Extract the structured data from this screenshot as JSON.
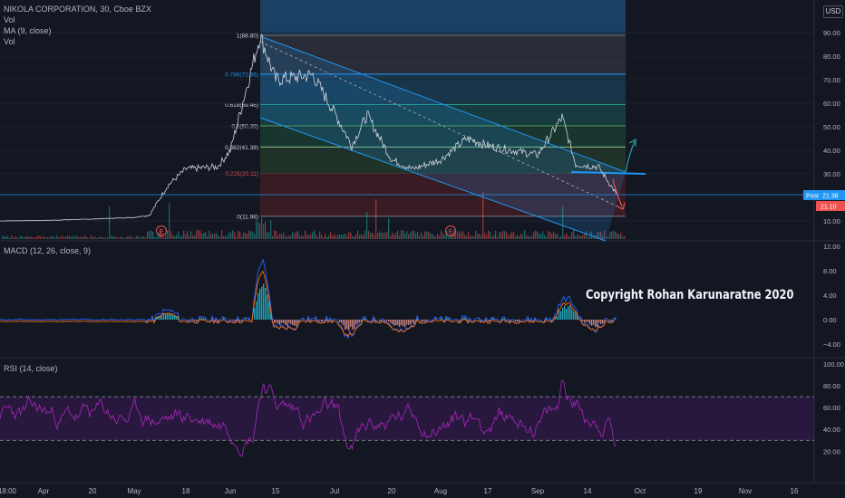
{
  "header": {
    "symbol_line": "NIKOLA CORPORATION, 30, Cboe BZX",
    "vol_line": "Vol",
    "ma_line": "MA (9, close)",
    "vol_line2": "Vol",
    "currency": "USD"
  },
  "macd_title": "MACD (12, 26, close, 9)",
  "rsi_title": "RSI (14, close)",
  "copyright": "Copyright Rohan Karunaratne 2020",
  "price_tag": {
    "label": "Post",
    "value": "21.38",
    "value2": "21.10"
  },
  "colors": {
    "background": "#131722",
    "up": "#26a69a",
    "down": "#ef5350",
    "channel": "#2196f3",
    "rsi": "#9c27b0",
    "macd": "#2962ff",
    "signal": "#ff6d00"
  },
  "chart_data": [
    {
      "type": "line",
      "title": "NIKOLA CORPORATION, 30, Cboe BZX",
      "x_ticks": [
        "18:00",
        "Apr",
        "20",
        "May",
        "18",
        "Jun",
        "15",
        "Jul",
        "20",
        "Aug",
        "17",
        "Sep",
        "14",
        "Oct",
        "19",
        "Nov",
        "16"
      ],
      "y_ticks": [
        10,
        20,
        30,
        40,
        50,
        60,
        70,
        80,
        90
      ],
      "ylim": [
        5,
        95
      ],
      "series": [
        {
          "values": [
            {
              "t": "18:00",
              "v": 10.0
            },
            {
              "t": "Apr",
              "v": 10.2
            },
            {
              "t": "20",
              "v": 10.8
            },
            {
              "t": "May",
              "v": 11.5
            },
            {
              "t": "May-mid",
              "v": 12.5
            },
            {
              "t": "May-late",
              "v": 25
            },
            {
              "t": "18",
              "v": 32
            },
            {
              "t": "Jun-pre",
              "v": 33
            },
            {
              "t": "Jun",
              "v": 40
            },
            {
              "t": "Jun-8",
              "v": 88.8
            },
            {
              "t": "15",
              "v": 70
            },
            {
              "t": "Jun-25",
              "v": 72
            },
            {
              "t": "Jul",
              "v": 56
            },
            {
              "t": "Jul-8",
              "v": 42
            },
            {
              "t": "Jul-14",
              "v": 55
            },
            {
              "t": "20",
              "v": 36
            },
            {
              "t": "Jul-27",
              "v": 32
            },
            {
              "t": "Aug",
              "v": 36
            },
            {
              "t": "Aug-10",
              "v": 45
            },
            {
              "t": "17",
              "v": 42
            },
            {
              "t": "Aug-24",
              "v": 40
            },
            {
              "t": "Sep",
              "v": 38
            },
            {
              "t": "Sep-8",
              "v": 54
            },
            {
              "t": "14",
              "v": 34
            },
            {
              "t": "Sep-18",
              "v": 33
            },
            {
              "t": "Sep-21",
              "v": 21.38
            }
          ]
        }
      ],
      "fibonacci": [
        {
          "ratio": "1",
          "price": "88.80"
        },
        {
          "ratio": "0.786",
          "price": "72.36"
        },
        {
          "ratio": "0.618",
          "price": "59.46"
        },
        {
          "ratio": "0.5",
          "price": "50.39"
        },
        {
          "ratio": "0.382",
          "price": "41.38"
        },
        {
          "ratio": "0.236",
          "price": "30.11"
        },
        {
          "ratio": "0",
          "price": "11.98"
        }
      ],
      "earnings_markers": [
        "E",
        "E"
      ]
    },
    {
      "type": "line",
      "title": "MACD (12, 26, close, 9)",
      "y_ticks": [
        12.0,
        8.0,
        4.0,
        0.0,
        -4.0
      ],
      "ylim": [
        -5,
        12
      ]
    },
    {
      "type": "line",
      "title": "RSI (14, close)",
      "y_ticks": [
        100.0,
        80.0,
        60.0,
        40.0,
        20.0
      ],
      "ylim": [
        10,
        100
      ],
      "bands": [
        70,
        30
      ]
    }
  ]
}
